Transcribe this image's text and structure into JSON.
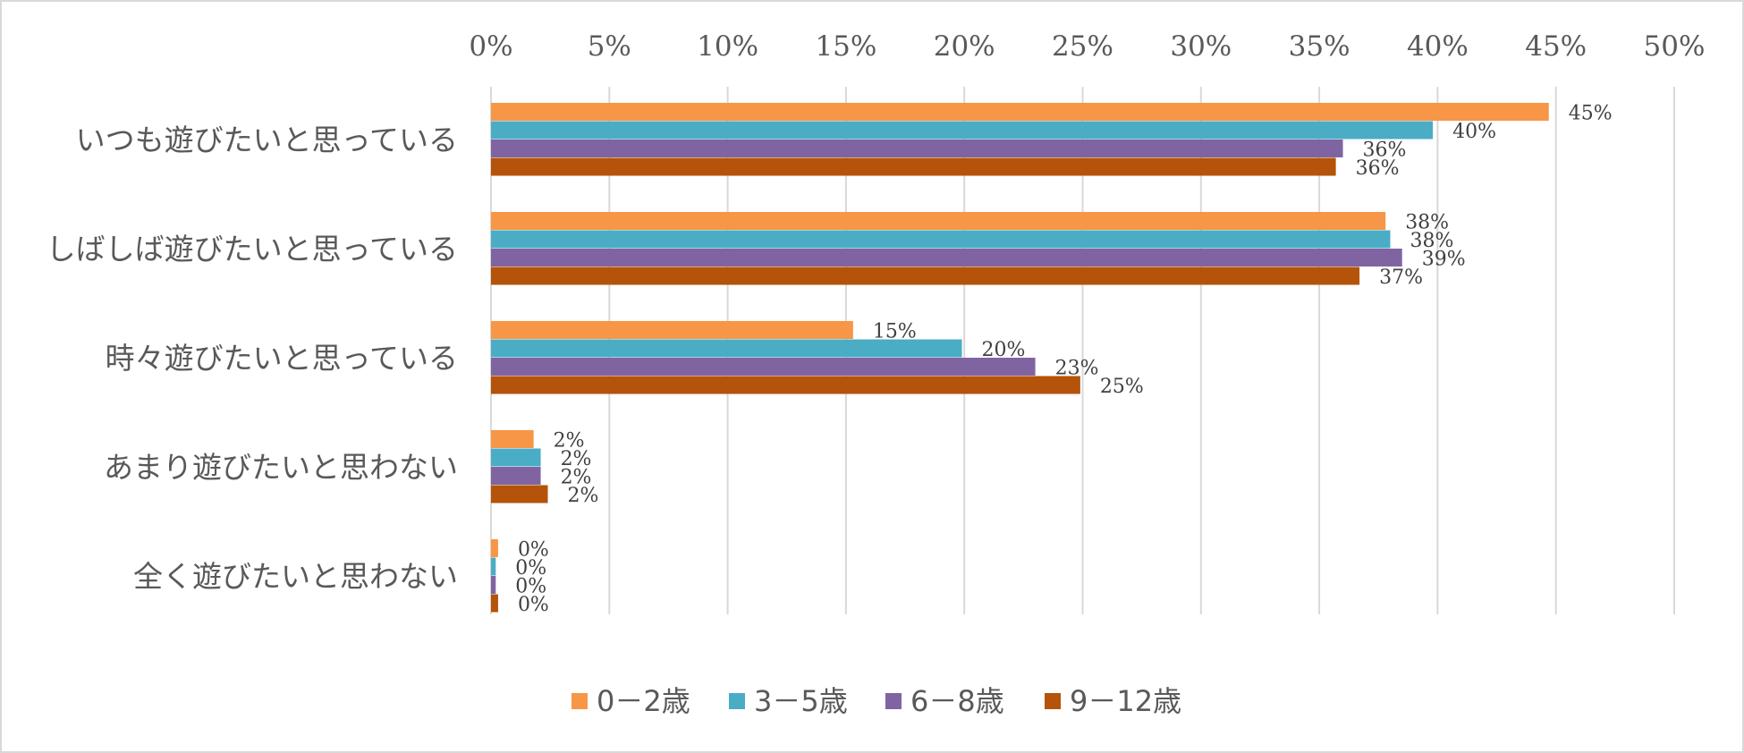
{
  "chart_data": {
    "type": "bar",
    "orientation": "horizontal",
    "categories": [
      "いつも遊びたいと思っている",
      "しばしば遊びたいと思っている",
      "時々遊びたいと思っている",
      "あまり遊びたいと思わない",
      "全く遊びたいと思わない"
    ],
    "series": [
      {
        "name": "0－2歳",
        "color": "#F79646",
        "values": [
          44.7,
          37.8,
          15.3,
          1.8,
          0.3
        ],
        "labels": [
          "45%",
          "38%",
          "15%",
          "2%",
          "0%"
        ]
      },
      {
        "name": "3－5歳",
        "color": "#4BACC6",
        "values": [
          39.8,
          38.0,
          19.9,
          2.1,
          0.2
        ],
        "labels": [
          "40%",
          "38%",
          "20%",
          "2%",
          "0%"
        ]
      },
      {
        "name": "6－8歳",
        "color": "#8064A2",
        "values": [
          36.0,
          38.5,
          23.0,
          2.1,
          0.2
        ],
        "labels": [
          "36%",
          "39%",
          "23%",
          "2%",
          "0%"
        ]
      },
      {
        "name": "9－12歳",
        "color": "#B45309",
        "values": [
          35.7,
          36.7,
          24.9,
          2.4,
          0.3
        ],
        "labels": [
          "36%",
          "37%",
          "25%",
          "2%",
          "0%"
        ]
      }
    ],
    "xlim": [
      0,
      50
    ],
    "xticks": [
      "0%",
      "5%",
      "10%",
      "15%",
      "20%",
      "25%",
      "30%",
      "35%",
      "40%",
      "45%",
      "50%"
    ],
    "x_axis_position": "top",
    "grid": true,
    "legend": "bottom",
    "title": "",
    "xlabel": "",
    "ylabel": ""
  }
}
